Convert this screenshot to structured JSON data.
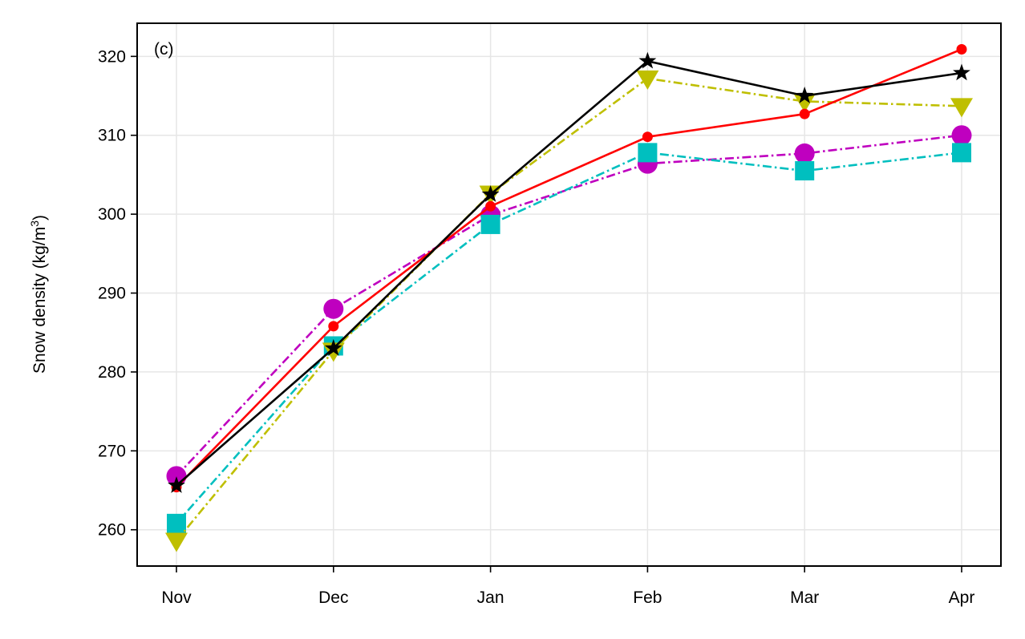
{
  "chart_data": {
    "type": "line",
    "panel_label": "(c)",
    "ylabel": "Snow density (kg/m",
    "ylabel_sup": "3",
    "ylabel_close": ")",
    "xlabel": "",
    "categories": [
      "Nov",
      "Dec",
      "Jan",
      "Feb",
      "Mar",
      "Apr"
    ],
    "yticks": [
      260,
      270,
      280,
      290,
      300,
      310,
      320
    ],
    "ylim": [
      255.4,
      324.2
    ],
    "grid": true,
    "series": [
      {
        "color": "#bf00bf",
        "linestyle": "dashdot",
        "marker": "circle",
        "values": [
          266.8,
          288.0,
          299.9,
          306.4,
          307.7,
          310.0
        ]
      },
      {
        "color": "#00bfbf",
        "linestyle": "dashdot",
        "marker": "square",
        "values": [
          260.8,
          283.3,
          298.7,
          307.8,
          305.5,
          307.8
        ]
      },
      {
        "color": "#bfbf00",
        "linestyle": "dashdot",
        "marker": "triangle-down",
        "values": [
          258.6,
          282.7,
          302.6,
          317.2,
          314.3,
          313.7
        ]
      },
      {
        "color": "#ff0000",
        "linestyle": "solid",
        "marker": "small-circle",
        "values": [
          265.4,
          285.8,
          301.0,
          309.8,
          312.7,
          320.9
        ]
      },
      {
        "color": "#000000",
        "linestyle": "solid",
        "marker": "star",
        "values": [
          265.6,
          283.0,
          302.5,
          319.4,
          315.0,
          317.9
        ]
      }
    ]
  }
}
